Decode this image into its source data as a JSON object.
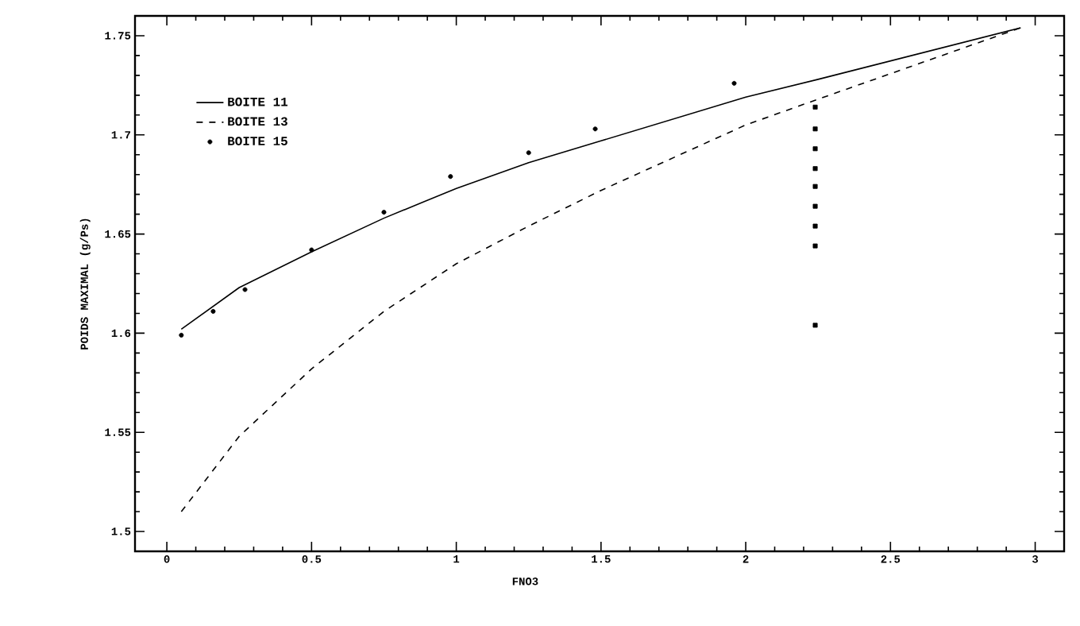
{
  "chart_data": {
    "type": "line",
    "xlabel": "FNO3",
    "ylabel": "POIDS MAXIMAL (g/Ps)",
    "xlim": [
      -0.11,
      3.1
    ],
    "ylim": [
      1.49,
      1.76
    ],
    "xticks": [
      0,
      0.5,
      1,
      1.5,
      2,
      2.5,
      3
    ],
    "yticks": [
      1.5,
      1.55,
      1.6,
      1.65,
      1.7,
      1.75
    ],
    "legend": "top left",
    "grid": false,
    "series": [
      {
        "name": "BOITE 11",
        "line_style": "solid",
        "color": "#000000",
        "x": [
          0.05,
          0.25,
          0.5,
          0.75,
          1,
          1.25,
          1.5,
          2,
          2.25,
          2.95
        ],
        "values": [
          1.602,
          1.623,
          1.641,
          1.658,
          1.673,
          1.686,
          1.697,
          1.719,
          1.728,
          1.754
        ]
      },
      {
        "name": "BOITE 13",
        "line_style": "dashed",
        "color": "#000000",
        "x": [
          0.05,
          0.25,
          0.5,
          0.75,
          1,
          1.25,
          1.5,
          2,
          2.25,
          2.95
        ],
        "values": [
          1.51,
          1.548,
          1.582,
          1.611,
          1.635,
          1.654,
          1.672,
          1.705,
          1.718,
          1.754
        ]
      },
      {
        "name": "BOITE 15",
        "type": "scatter",
        "marker": "circle",
        "color": "#000000",
        "x": [
          0.05,
          0.16,
          0.27,
          0.5,
          0.75,
          0.98,
          1.25,
          1.48,
          1.96
        ],
        "values": [
          1.599,
          1.611,
          1.622,
          1.642,
          1.661,
          1.679,
          1.691,
          1.703,
          1.726
        ]
      },
      {
        "type": "scatter",
        "marker": "square",
        "color": "#000000",
        "x": [
          2.24,
          2.24,
          2.24,
          2.24,
          2.24,
          2.24,
          2.24,
          2.24,
          2.24
        ],
        "values": [
          1.714,
          1.703,
          1.693,
          1.683,
          1.674,
          1.664,
          1.654,
          1.644,
          1.604
        ]
      }
    ]
  }
}
